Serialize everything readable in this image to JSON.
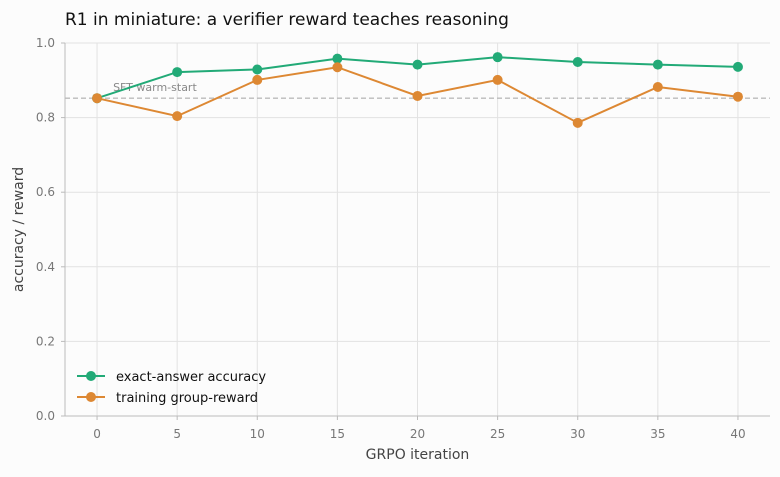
{
  "chart_data": {
    "type": "line",
    "title": "R1 in miniature: a verifier reward teaches reasoning",
    "xlabel": "GRPO iteration",
    "ylabel": "accuracy / reward",
    "x": [
      0,
      5,
      10,
      15,
      20,
      25,
      30,
      35,
      40
    ],
    "xticks": [
      0,
      5,
      10,
      15,
      20,
      25,
      30,
      35,
      40
    ],
    "yticks": [
      0.0,
      0.2,
      0.4,
      0.6,
      0.8,
      1.0
    ],
    "xlim": [
      -2,
      42
    ],
    "ylim": [
      0.0,
      1.0
    ],
    "grid": true,
    "legend_position": "bottom-left",
    "series": [
      {
        "name": "exact-answer accuracy",
        "color": "#22aa77",
        "values": [
          0.852,
          0.922,
          0.929,
          0.958,
          0.942,
          0.962,
          0.949,
          0.942,
          0.936
        ]
      },
      {
        "name": "training group-reward",
        "color": "#dd8833",
        "values": [
          0.852,
          0.804,
          0.901,
          0.935,
          0.858,
          0.901,
          0.786,
          0.882,
          0.856
        ]
      }
    ],
    "reference_line": {
      "value": 0.852,
      "label": "SFT warm-start",
      "color": "#bbbbbb"
    }
  }
}
